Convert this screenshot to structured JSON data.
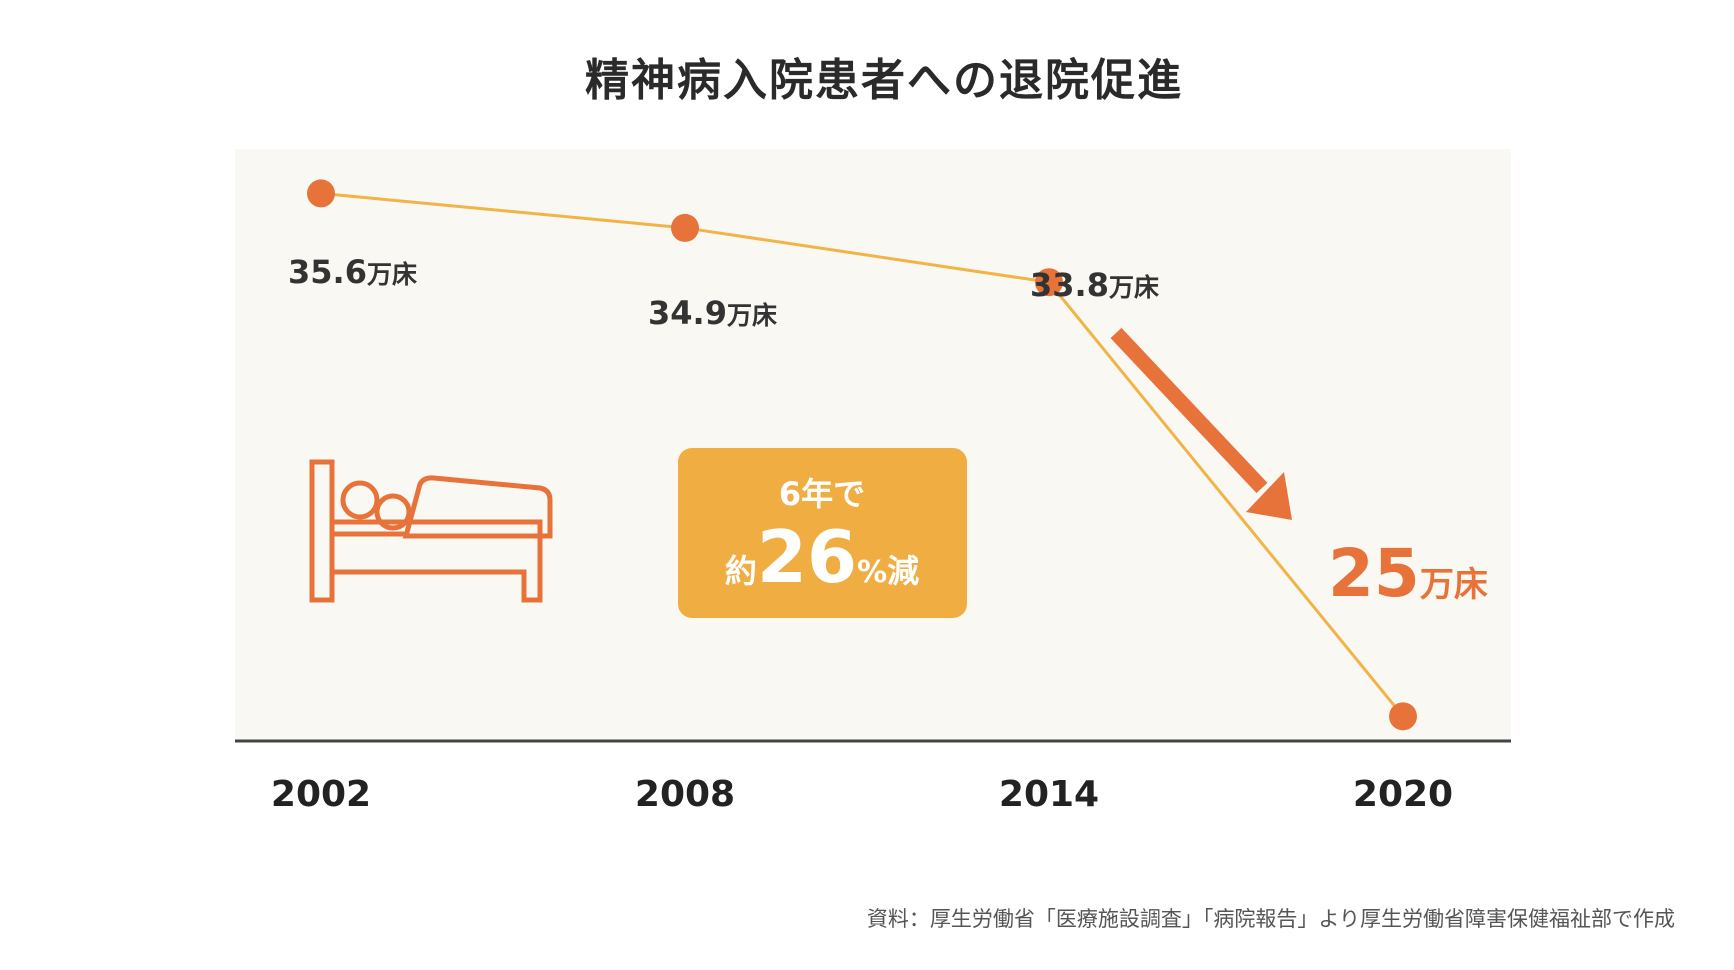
{
  "chart_data": {
    "type": "line",
    "title": "精神病入院患者への退院促進",
    "categories": [
      "2002",
      "2008",
      "2014",
      "2020"
    ],
    "values": [
      35.6,
      34.9,
      33.8,
      25
    ],
    "data_labels": [
      "35.6",
      "34.9",
      "33.8",
      "25"
    ],
    "unit": "万床",
    "xlabel": "",
    "ylabel": "",
    "ylim": [
      24.5,
      36.5
    ],
    "grid": false,
    "annotation": {
      "line1": "6年で",
      "prefix": "約",
      "number": "26",
      "percent": "%",
      "suffix": "減"
    },
    "source": "資料：厚生労働省「医療施設調査」「病院報告」より厚生労働省障害保健福祉部で作成"
  },
  "colors": {
    "point": "#E8733A",
    "line": "#F0B448",
    "box": "#EFAD42",
    "background": "#FAF8F3",
    "axis": "#444444",
    "highlight": "#E8733A"
  }
}
